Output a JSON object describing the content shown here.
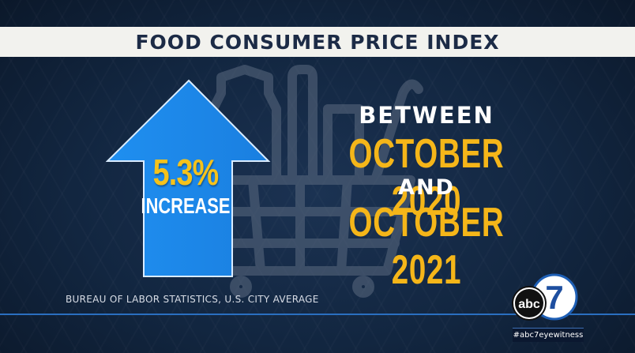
{
  "title": "FOOD CONSUMER PRICE INDEX",
  "arrow": {
    "percent": "5.3%",
    "label": "INCREASE",
    "color": "#2196f3"
  },
  "period": {
    "between": "BETWEEN",
    "start": "OCTOBER 2020",
    "and": "AND",
    "end": "OCTOBER 2021"
  },
  "source": "BUREAU OF LABOR STATISTICS, U.S. CITY AVERAGE",
  "logo": {
    "text": "abc",
    "number": "7",
    "icon": "abc7-logo-icon"
  },
  "hashtag": "#abc7eyewitness",
  "colors": {
    "background": "#122640",
    "accent_yellow": "#f5b619",
    "title_bar": "#f2f2ee",
    "title_text": "#1c2b46"
  }
}
